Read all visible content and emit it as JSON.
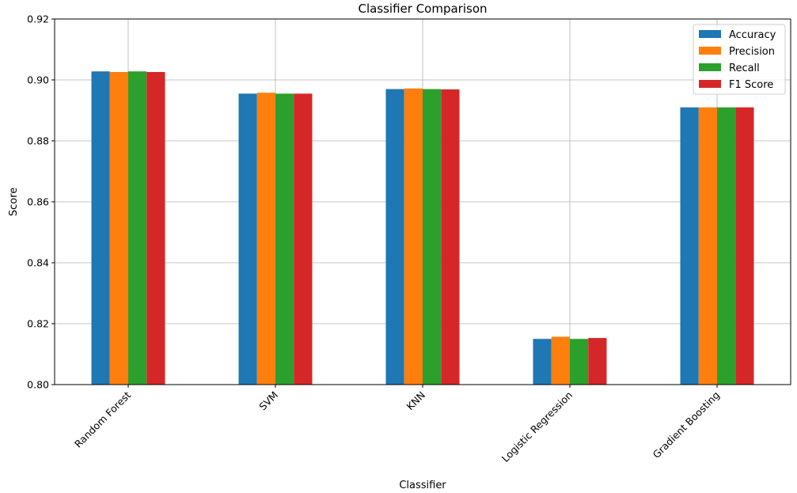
{
  "chart_data": {
    "type": "bar",
    "title": "Classifier Comparison",
    "xlabel": "Classifier",
    "ylabel": "Score",
    "categories": [
      "Random Forest",
      "SVM",
      "KNN",
      "Logistic Regression",
      "Gradient Boosting"
    ],
    "series": [
      {
        "name": "Accuracy",
        "color": "#1f77b4",
        "values": [
          0.9028,
          0.8955,
          0.897,
          0.815,
          0.891
        ]
      },
      {
        "name": "Precision",
        "color": "#ff7f0e",
        "values": [
          0.9026,
          0.8958,
          0.8972,
          0.8157,
          0.891
        ]
      },
      {
        "name": "Recall",
        "color": "#2ca02c",
        "values": [
          0.9028,
          0.8955,
          0.897,
          0.815,
          0.891
        ]
      },
      {
        "name": "F1 Score",
        "color": "#d62728",
        "values": [
          0.9026,
          0.8955,
          0.8969,
          0.8153,
          0.891
        ]
      }
    ],
    "ylim": [
      0.8,
      0.92
    ],
    "yticks": [
      "0.80",
      "0.82",
      "0.84",
      "0.86",
      "0.88",
      "0.90",
      "0.92"
    ],
    "grid": true,
    "legend_position": "top-right"
  }
}
